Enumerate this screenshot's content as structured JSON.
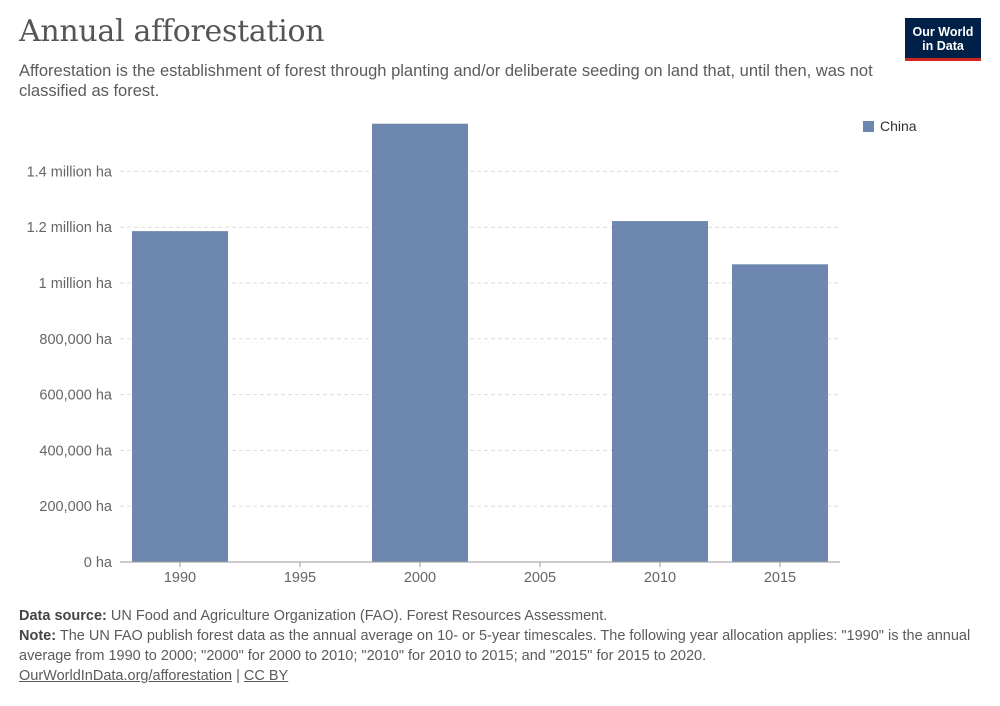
{
  "header": {
    "title": "Annual afforestation",
    "subtitle": "Afforestation is the establishment of forest through planting and/or deliberate seeding on land that, until then, was not classified as forest."
  },
  "logo": {
    "line1": "Our World",
    "line2": "in Data"
  },
  "legend": {
    "label": "China"
  },
  "footer": {
    "source_label": "Data source:",
    "source_text": "UN Food and Agriculture Organization (FAO). Forest Resources Assessment.",
    "note_label": "Note:",
    "note_text": "The UN FAO publish forest data as the annual average on 10- or 5-year timescales. The following year allocation applies: \"1990\" is the annual average from 1990 to 2000; \"2000\" for 2000 to 2010; \"2010\" for 2010 to 2015; and \"2015\" for 2015 to 2020.",
    "link_text": "OurWorldInData.org/afforestation",
    "separator": "|",
    "license_text": "CC BY"
  },
  "colors": {
    "bar": "#6d87b0",
    "grid": "#dddddd",
    "axis": "#999999",
    "logo_bg": "#002147",
    "logo_accent": "#ce261e"
  },
  "chart_data": {
    "type": "bar",
    "categories": [
      "1990",
      "1995",
      "2000",
      "2005",
      "2010",
      "2015"
    ],
    "series": [
      {
        "name": "China",
        "values": [
          1186000,
          null,
          1571000,
          null,
          1222000,
          1067000
        ]
      }
    ],
    "yticks": [
      0,
      200000,
      400000,
      600000,
      800000,
      1000000,
      1200000,
      1400000
    ],
    "ytick_labels": [
      "0 ha",
      "200,000 ha",
      "400,000 ha",
      "600,000 ha",
      "800,000 ha",
      "1 million ha",
      "1.2 million ha",
      "1.4 million ha"
    ],
    "ylim": [
      0,
      1571000
    ],
    "grid": true,
    "legend_position": "top-right"
  }
}
